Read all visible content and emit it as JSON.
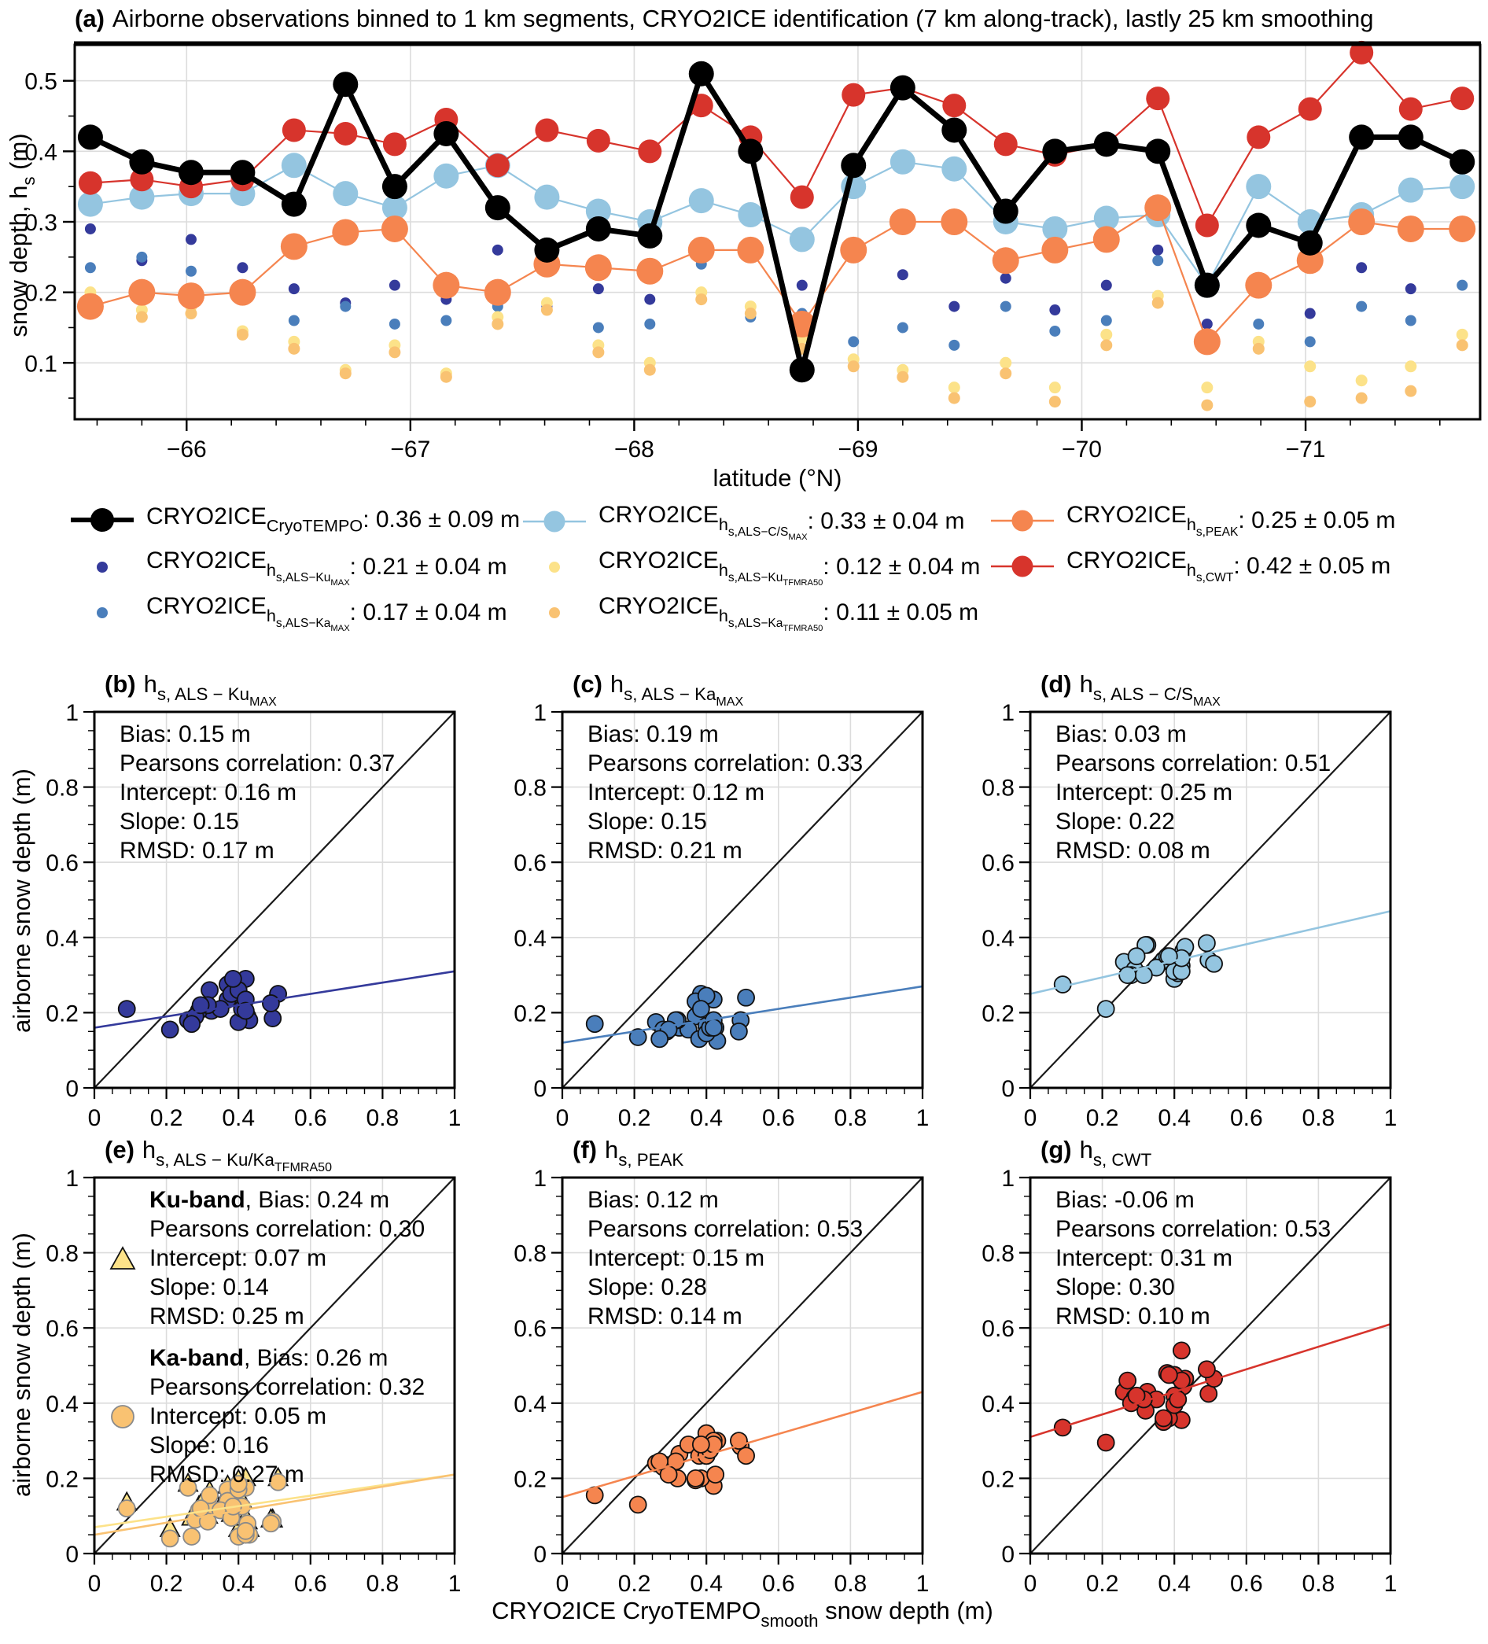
{
  "figure": {
    "row_ylabel": "airborne snow depth (m)",
    "shared_xlabel": {
      "pre": "CRYO2ICE CryoTEMPO",
      "sub": "smooth",
      "post": " snow depth (m)"
    }
  },
  "chart_data": {
    "panel_a": {
      "type": "line",
      "label_bold": "(a)",
      "title_text": "Airborne observations binned to 1 km segments, CRYO2ICE identification (7 km along-track), lastly 25 km smoothing",
      "xlabel": "latitude (°N)",
      "ylabel_parts": {
        "pre": "snow depth, h",
        "sub": "s",
        "post": " (m)"
      },
      "xlim": [
        -65.5,
        -71.78
      ],
      "ylim": [
        0.02,
        0.551
      ],
      "xticks": [
        -66,
        -67,
        -68,
        -69,
        -70,
        -71
      ],
      "xtick_labels": [
        "−66",
        "−67",
        "−68",
        "−69",
        "−70",
        "−71"
      ],
      "yticks": [
        0.1,
        0.2,
        0.3,
        0.4,
        0.5
      ],
      "ytick_labels": [
        "0.1",
        "0.2",
        "0.3",
        "0.4",
        "0.5"
      ],
      "grid": true,
      "x": [
        -65.57,
        -65.8,
        -66.02,
        -66.25,
        -66.48,
        -66.71,
        -66.93,
        -67.16,
        -67.39,
        -67.61,
        -67.84,
        -68.07,
        -68.3,
        -68.52,
        -68.75,
        -68.98,
        -69.2,
        -69.43,
        -69.66,
        -69.88,
        -70.11,
        -70.34,
        -70.56,
        -70.79,
        -71.02,
        -71.25,
        -71.47,
        -71.7
      ],
      "series": [
        {
          "id": "ku_max_dots",
          "name": "CRYO2ICE hs,ALS−KuMAX",
          "kind": "dots",
          "color": "#343a9b",
          "r": 7,
          "values": [
            0.29,
            0.245,
            0.275,
            0.235,
            0.205,
            0.185,
            0.21,
            0.19,
            0.26,
            0.18,
            0.205,
            0.19,
            0.25,
            0.26,
            0.21,
            0.25,
            0.225,
            0.18,
            0.22,
            0.175,
            0.21,
            0.26,
            0.155,
            0.22,
            0.17,
            0.235,
            0.205,
            0.29
          ]
        },
        {
          "id": "ka_max_dots",
          "name": "CRYO2ICE hs,ALS−KaMAX",
          "kind": "dots",
          "color": "#4a7ebb",
          "r": 7,
          "values": [
            0.235,
            0.25,
            0.23,
            0.19,
            0.16,
            0.18,
            0.155,
            0.16,
            0.18,
            0.175,
            0.15,
            0.155,
            0.24,
            0.165,
            0.17,
            0.13,
            0.15,
            0.125,
            0.18,
            0.145,
            0.16,
            0.245,
            0.135,
            0.155,
            0.13,
            0.18,
            0.16,
            0.21
          ]
        },
        {
          "id": "ku_tfmra_dots",
          "name": "CRYO2ICE hs,ALS−KuTFMRA50",
          "kind": "dots",
          "color": "#fce289",
          "r": 7.5,
          "values": [
            0.2,
            0.175,
            0.18,
            0.145,
            0.13,
            0.09,
            0.125,
            0.085,
            0.165,
            0.185,
            0.125,
            0.1,
            0.2,
            0.18,
            0.135,
            0.105,
            0.09,
            0.065,
            0.1,
            0.065,
            0.14,
            0.195,
            0.065,
            0.13,
            0.095,
            0.075,
            0.095,
            0.14
          ]
        },
        {
          "id": "ka_tfmra_dots",
          "name": "CRYO2ICE hs,ALS−KaTFMRA50",
          "kind": "dots",
          "color": "#f9c272",
          "r": 7.5,
          "values": [
            0.175,
            0.165,
            0.17,
            0.14,
            0.12,
            0.085,
            0.115,
            0.08,
            0.155,
            0.175,
            0.115,
            0.09,
            0.19,
            0.17,
            0.12,
            0.095,
            0.08,
            0.05,
            0.085,
            0.045,
            0.125,
            0.185,
            0.04,
            0.12,
            0.045,
            0.05,
            0.06,
            0.125
          ]
        },
        {
          "id": "cs_max",
          "name": "CRYO2ICE hs,ALS−C/SMAX",
          "kind": "line",
          "color": "#94c5e0",
          "r": 16,
          "lw": 2.2,
          "values": [
            0.325,
            0.335,
            0.34,
            0.34,
            0.38,
            0.34,
            0.32,
            0.365,
            0.38,
            0.335,
            0.315,
            0.3,
            0.33,
            0.31,
            0.275,
            0.35,
            0.385,
            0.375,
            0.3,
            0.29,
            0.305,
            0.31,
            0.21,
            0.35,
            0.3,
            0.31,
            0.345,
            0.35
          ]
        },
        {
          "id": "peak",
          "name": "CRYO2ICE hs,PEAK",
          "kind": "line",
          "color": "#f5854f",
          "r": 17,
          "lw": 2.2,
          "values": [
            0.18,
            0.2,
            0.195,
            0.2,
            0.265,
            0.285,
            0.29,
            0.21,
            0.2,
            0.24,
            0.235,
            0.23,
            0.26,
            0.26,
            0.155,
            0.26,
            0.3,
            0.3,
            0.245,
            0.26,
            0.275,
            0.32,
            0.13,
            0.21,
            0.245,
            0.3,
            0.29,
            0.29
          ]
        },
        {
          "id": "cwt",
          "name": "CRYO2ICE hs,CWT",
          "kind": "line",
          "color": "#d7342c",
          "r": 15,
          "lw": 2.2,
          "values": [
            0.355,
            0.36,
            0.35,
            0.36,
            0.43,
            0.425,
            0.41,
            0.445,
            0.38,
            0.43,
            0.415,
            0.4,
            0.465,
            0.42,
            0.335,
            0.48,
            0.49,
            0.465,
            0.41,
            0.395,
            0.41,
            0.475,
            0.295,
            0.42,
            0.46,
            0.54,
            0.46,
            0.475
          ]
        },
        {
          "id": "cryotempo",
          "name": "CRYO2ICE CryoTEMPO",
          "kind": "line",
          "color": "#000000",
          "r": 16,
          "lw": 7,
          "values": [
            0.42,
            0.385,
            0.37,
            0.37,
            0.325,
            0.495,
            0.35,
            0.425,
            0.32,
            0.26,
            0.29,
            0.28,
            0.51,
            0.4,
            0.09,
            0.38,
            0.49,
            0.43,
            0.315,
            0.4,
            0.41,
            0.4,
            0.21,
            0.295,
            0.27,
            0.42,
            0.42,
            0.385
          ]
        }
      ],
      "legend": [
        {
          "marker": "line-dot",
          "color": "#000000",
          "big": true,
          "base": "CRYO2ICE",
          "subs": [
            "CryoTEMPO"
          ],
          "stats": ": 0.36 ± 0.09 m",
          "col": 0,
          "row": 0
        },
        {
          "marker": "dot",
          "color": "#343a9b",
          "base": "CRYO2ICE",
          "subs": [
            "h",
            "s,ALS−Ku",
            "MAX"
          ],
          "stats": ": 0.21 ± 0.04 m",
          "col": 0,
          "row": 1
        },
        {
          "marker": "dot",
          "color": "#4a7ebb",
          "base": "CRYO2ICE",
          "subs": [
            "h",
            "s,ALS−Ka",
            "MAX"
          ],
          "stats": ": 0.17 ± 0.04 m",
          "col": 0,
          "row": 2
        },
        {
          "marker": "line-dot",
          "color": "#94c5e0",
          "base": "CRYO2ICE",
          "subs": [
            "h",
            "s,ALS−C/S",
            "MAX"
          ],
          "stats": ": 0.33 ± 0.04 m",
          "col": 1,
          "row": 0
        },
        {
          "marker": "dot",
          "color": "#fce289",
          "base": "CRYO2ICE",
          "subs": [
            "h",
            "s,ALS−Ku",
            "TFMRA50"
          ],
          "stats": ": 0.12 ± 0.04 m",
          "col": 1,
          "row": 1
        },
        {
          "marker": "dot",
          "color": "#f9c272",
          "base": "CRYO2ICE",
          "subs": [
            "h",
            "s,ALS−Ka",
            "TFMRA50"
          ],
          "stats": ": 0.11 ± 0.05 m",
          "col": 1,
          "row": 2
        },
        {
          "marker": "line-dot",
          "color": "#f5854f",
          "base": "CRYO2ICE",
          "subs": [
            "h",
            "s,PEAK"
          ],
          "stats": ": 0.25 ± 0.05 m",
          "col": 2,
          "row": 0
        },
        {
          "marker": "line-dot",
          "color": "#d7342c",
          "base": "CRYO2ICE",
          "subs": [
            "h",
            "s,CWT"
          ],
          "stats": ": 0.42 ± 0.05 m",
          "col": 2,
          "row": 1
        }
      ]
    },
    "scatter_axes": {
      "xlim": [
        0,
        1
      ],
      "ylim": [
        0,
        1
      ],
      "ticks": [
        0,
        0.2,
        0.4,
        0.6,
        0.8,
        1
      ],
      "tick_labels": [
        "0",
        "0.2",
        "0.4",
        "0.6",
        "0.8",
        "1"
      ],
      "identity_line": true,
      "grid": true
    },
    "scatters": [
      {
        "label": "(b)",
        "title_base": "h",
        "title_subs": [
          "s, ALS − Ku",
          "MAX"
        ],
        "sets": [
          {
            "shape": "circle",
            "color": "#343a9b",
            "edge": "#111111",
            "y_from": "ku_max_dots"
          }
        ],
        "fits": [
          {
            "color": "#343a9b",
            "intercept": 0.16,
            "slope": 0.15
          }
        ],
        "stats": [
          {
            "lines": [
              "Bias: 0.15 m",
              "Pearsons correlation: 0.37",
              "Intercept: 0.16 m",
              "Slope: 0.15",
              "RMSD: 0.17 m"
            ]
          }
        ]
      },
      {
        "label": "(c)",
        "title_base": "h",
        "title_subs": [
          "s, ALS − Ka",
          "MAX"
        ],
        "sets": [
          {
            "shape": "circle",
            "color": "#4a7ebb",
            "edge": "#111111",
            "y_from": "ka_max_dots"
          }
        ],
        "fits": [
          {
            "color": "#4a7ebb",
            "intercept": 0.12,
            "slope": 0.15
          }
        ],
        "stats": [
          {
            "lines": [
              "Bias: 0.19 m",
              "Pearsons correlation: 0.33",
              "Intercept: 0.12 m",
              "Slope: 0.15",
              "RMSD: 0.21 m"
            ]
          }
        ]
      },
      {
        "label": "(d)",
        "title_base": "h",
        "title_subs": [
          "s, ALS − C/S",
          "MAX"
        ],
        "sets": [
          {
            "shape": "circle",
            "color": "#94c5e0",
            "edge": "#111111",
            "y_from": "cs_max"
          }
        ],
        "fits": [
          {
            "color": "#94c5e0",
            "intercept": 0.25,
            "slope": 0.22
          }
        ],
        "stats": [
          {
            "lines": [
              "Bias: 0.03 m",
              "Pearsons correlation: 0.51",
              "Intercept: 0.25 m",
              "Slope: 0.22",
              "RMSD: 0.08 m"
            ]
          }
        ]
      },
      {
        "label": "(e)",
        "title_base": "h",
        "title_subs": [
          "s, ALS − Ku/Ka",
          "TFMRA50"
        ],
        "sets": [
          {
            "shape": "triangle",
            "color": "#fce289",
            "edge": "#111111",
            "y_from": "ku_tfmra_dots"
          },
          {
            "shape": "circle",
            "color": "#f9c272",
            "edge": "#8a8a8a",
            "y_from": "ka_tfmra_dots"
          }
        ],
        "fits": [
          {
            "color": "#fce289",
            "intercept": 0.07,
            "slope": 0.14
          },
          {
            "color": "#f9c272",
            "intercept": 0.05,
            "slope": 0.16
          }
        ],
        "stats": [
          {
            "bold": "Ku-band",
            "first_rest": ", Bias: 0.24 m",
            "glyph": "triangle",
            "lines": [
              "Pearsons correlation: 0.30",
              "Intercept: 0.07 m",
              "Slope: 0.14",
              "RMSD: 0.25 m"
            ]
          },
          {
            "bold": "Ka-band",
            "first_rest": ", Bias: 0.26 m",
            "glyph": "circle",
            "lines": [
              "Pearsons correlation: 0.32",
              "Intercept: 0.05 m",
              "Slope: 0.16",
              "RMSD: 0.27 m"
            ]
          }
        ]
      },
      {
        "label": "(f)",
        "title_base": "h",
        "title_subs": [
          "s, PEAK"
        ],
        "sets": [
          {
            "shape": "circle",
            "color": "#f5854f",
            "edge": "#111111",
            "y_from": "peak"
          }
        ],
        "fits": [
          {
            "color": "#f5854f",
            "intercept": 0.15,
            "slope": 0.28
          }
        ],
        "stats": [
          {
            "lines": [
              "Bias: 0.12 m",
              "Pearsons correlation: 0.53",
              "Intercept: 0.15 m",
              "Slope: 0.28",
              "RMSD: 0.14 m"
            ]
          }
        ]
      },
      {
        "label": "(g)",
        "title_base": "h",
        "title_subs": [
          "s, CWT"
        ],
        "sets": [
          {
            "shape": "circle",
            "color": "#d7342c",
            "edge": "#111111",
            "y_from": "cwt"
          }
        ],
        "fits": [
          {
            "color": "#d7342c",
            "intercept": 0.31,
            "slope": 0.3
          }
        ],
        "stats": [
          {
            "lines": [
              "Bias: -0.06 m",
              "Pearsons correlation: 0.53",
              "Intercept: 0.31 m",
              "Slope: 0.30",
              "RMSD: 0.10 m"
            ]
          }
        ]
      }
    ]
  }
}
